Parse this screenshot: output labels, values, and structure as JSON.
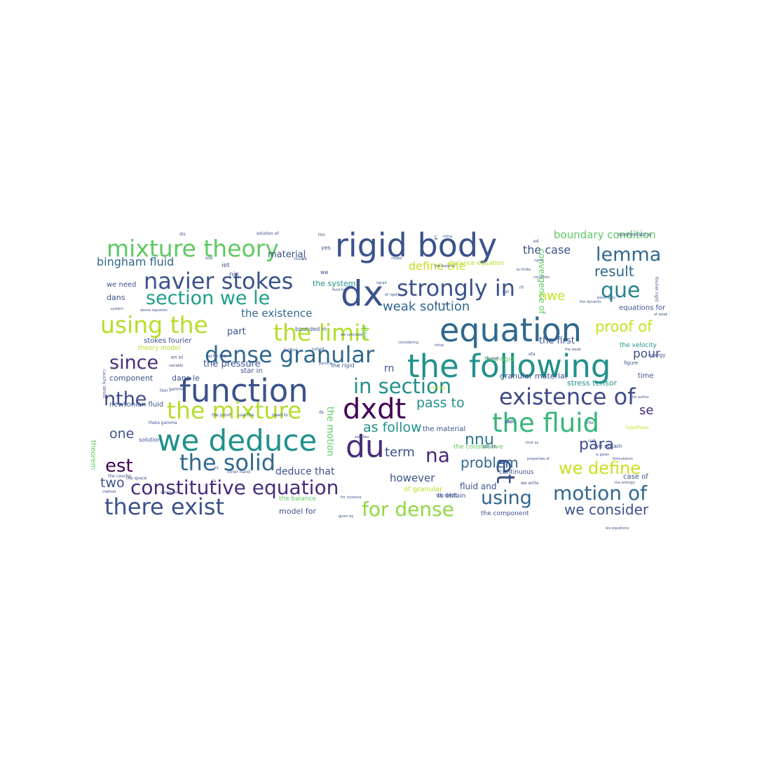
{
  "words": [
    {
      "text": "rigid body",
      "color": "#3b528b"
    },
    {
      "text": "dx",
      "color": "#3b528b"
    },
    {
      "text": "mixture theory",
      "color": "#5ec962"
    },
    {
      "text": "equation",
      "color": "#31688e"
    },
    {
      "text": "the following",
      "color": "#21918c"
    },
    {
      "text": "function",
      "color": "#3b528b"
    },
    {
      "text": "we deduce",
      "color": "#21918c"
    },
    {
      "text": "dense granular",
      "color": "#31688e"
    },
    {
      "text": "strongly in",
      "color": "#3b528b"
    },
    {
      "text": "navier stokes",
      "color": "#3b528b"
    },
    {
      "text": "the limit",
      "color": "#b5de2b"
    },
    {
      "text": "using the",
      "color": "#b5de2b"
    },
    {
      "text": "in section",
      "color": "#21918c"
    },
    {
      "text": "dxdt",
      "color": "#440154"
    },
    {
      "text": "existence of",
      "color": "#3e4989"
    },
    {
      "text": "du",
      "color": "#472d7b"
    },
    {
      "text": "the fluid",
      "color": "#35b779"
    },
    {
      "text": "the mixture",
      "color": "#b5de2b"
    },
    {
      "text": "the solid",
      "color": "#31688e"
    },
    {
      "text": "constitutive equation",
      "color": "#472d7b"
    },
    {
      "text": "there exist",
      "color": "#3b528b"
    },
    {
      "text": "for dense",
      "color": "#90d743"
    },
    {
      "text": "motion of",
      "color": "#31688e"
    },
    {
      "text": "using",
      "color": "#31688e"
    },
    {
      "text": "et",
      "color": "#3b528b"
    },
    {
      "text": "section we le",
      "color": "#1f9e89"
    },
    {
      "text": "lemma",
      "color": "#31688e"
    },
    {
      "text": "que",
      "color": "#26828e"
    },
    {
      "text": "since",
      "color": "#472d7b"
    },
    {
      "text": "nthe",
      "color": "#3e4989"
    },
    {
      "text": "est",
      "color": "#440154"
    },
    {
      "text": "na",
      "color": "#482878"
    },
    {
      "text": "we define",
      "color": "#c8e020"
    },
    {
      "text": "para",
      "color": "#3b528b"
    },
    {
      "text": "proof of",
      "color": "#c8e020"
    },
    {
      "text": "result",
      "color": "#31688e"
    },
    {
      "text": "weak solution",
      "color": "#31688e"
    },
    {
      "text": "pass to",
      "color": "#21918c"
    },
    {
      "text": "as follow",
      "color": "#21918c"
    },
    {
      "text": "nnu",
      "color": "#2c728e"
    },
    {
      "text": "problem",
      "color": "#31688e"
    },
    {
      "text": "we consider",
      "color": "#3b528b"
    },
    {
      "text": "boundary condition",
      "color": "#5ec962"
    },
    {
      "text": "bingham fluid",
      "color": "#31688e"
    },
    {
      "text": "the case",
      "color": "#3b528b"
    },
    {
      "text": "define the",
      "color": "#c8e020"
    },
    {
      "text": "nwe",
      "color": "#c8e020"
    },
    {
      "text": "the existence",
      "color": "#31688e"
    },
    {
      "text": "one",
      "color": "#3b528b"
    },
    {
      "text": "two",
      "color": "#3b528b"
    },
    {
      "text": "term",
      "color": "#3b528b"
    },
    {
      "text": "se",
      "color": "#472d7b"
    },
    {
      "text": "pour",
      "color": "#3b528b"
    },
    {
      "text": "however",
      "color": "#3b528b"
    },
    {
      "text": "deduce that",
      "color": "#3b528b"
    },
    {
      "text": "the pressure",
      "color": "#3b528b"
    },
    {
      "text": "component",
      "color": "#3b528b"
    },
    {
      "text": "material",
      "color": "#3b528b"
    },
    {
      "text": "the system",
      "color": "#21918c"
    },
    {
      "text": "dans",
      "color": "#3b528b"
    },
    {
      "text": "we need",
      "color": "#3b528b"
    },
    {
      "text": "part",
      "color": "#3b528b"
    },
    {
      "text": "dans le",
      "color": "#3b528b"
    },
    {
      "text": "model for",
      "color": "#3b528b"
    },
    {
      "text": "fluid and",
      "color": "#3b528b"
    },
    {
      "text": "the first",
      "color": "#3b528b"
    },
    {
      "text": "granular material",
      "color": "#3b528b"
    },
    {
      "text": "stress tensor",
      "color": "#21918c"
    },
    {
      "text": "the velocity",
      "color": "#21918c"
    },
    {
      "text": "stokes fourier",
      "color": "#3b528b"
    },
    {
      "text": "newtonian fluid",
      "color": "#3b528b"
    },
    {
      "text": "the motion",
      "color": "#5ec962"
    },
    {
      "text": "convergence of",
      "color": "#5ec962"
    },
    {
      "text": "equations for",
      "color": "#3b528b"
    },
    {
      "text": "the constitutive",
      "color": "#5ec962"
    },
    {
      "text": "the component",
      "color": "#3b528b"
    },
    {
      "text": "to obtain",
      "color": "#3b528b"
    },
    {
      "text": "continuous",
      "color": "#3b528b"
    },
    {
      "text": "the balance",
      "color": "#5ec962"
    },
    {
      "text": "case of",
      "color": "#3b528b"
    },
    {
      "text": "rn",
      "color": "#3b528b"
    },
    {
      "text": "theory model",
      "color": "#b5de2b"
    },
    {
      "text": "balance equation",
      "color": "#b5de2b"
    },
    {
      "text": "fluid rigid",
      "color": "#5ec962"
    },
    {
      "text": "solution",
      "color": "#3b528b"
    },
    {
      "text": "uk dxdt",
      "color": "#3b528b"
    },
    {
      "text": "the material",
      "color": "#3b528b"
    },
    {
      "text": "we obtain",
      "color": "#3b528b"
    },
    {
      "text": "solution of",
      "color": "#3b528b"
    },
    {
      "text": "mathematical",
      "color": "#3b528b"
    },
    {
      "text": "star in",
      "color": "#3b528b"
    },
    {
      "text": "of granular",
      "color": "#b5de2b"
    },
    {
      "text": "iet",
      "color": "#3b528b"
    },
    {
      "text": "nin",
      "color": "#3b528b"
    },
    {
      "text": "theorem",
      "color": "#5ec962"
    },
    {
      "text": "energy",
      "color": "#3b528b"
    },
    {
      "text": "time",
      "color": "#3b528b"
    },
    {
      "text": "figure",
      "color": "#3b528b"
    },
    {
      "text": "la limite",
      "color": "#3b528b"
    },
    {
      "text": "fourier rigid",
      "color": "#3b528b"
    },
    {
      "text": "we conclude",
      "color": "#3b528b"
    },
    {
      "text": "bounded in",
      "color": "#3b528b"
    },
    {
      "text": "the rigid",
      "color": "#3b528b"
    },
    {
      "text": "the proof",
      "color": "#3b528b"
    },
    {
      "text": "use the",
      "color": "#3b528b"
    },
    {
      "text": "need to",
      "color": "#3b528b"
    },
    {
      "text": "model",
      "color": "#3b528b"
    },
    {
      "text": "particle",
      "color": "#3b528b"
    },
    {
      "text": "write the",
      "color": "#3b528b"
    },
    {
      "text": "above equation",
      "color": "#3b528b"
    },
    {
      "text": "variable",
      "color": "#3b528b"
    },
    {
      "text": "system",
      "color": "#3b528b"
    },
    {
      "text": "the space",
      "color": "#3b528b"
    },
    {
      "text": "the cauchy",
      "color": "#3b528b"
    },
    {
      "text": "method",
      "color": "#3b528b"
    },
    {
      "text": "obtain the",
      "color": "#3b528b"
    },
    {
      "text": "given by",
      "color": "#3b528b"
    },
    {
      "text": "for instance",
      "color": "#3b528b"
    },
    {
      "text": "properties of",
      "color": "#3b528b"
    },
    {
      "text": "is given",
      "color": "#3b528b"
    },
    {
      "text": "formulation",
      "color": "#3b528b"
    },
    {
      "text": "the entropy",
      "color": "#3b528b"
    },
    {
      "text": "les equations",
      "color": "#3b528b"
    },
    {
      "text": "the author",
      "color": "#3b528b"
    },
    {
      "text": "hypothesis",
      "color": "#c8e020"
    },
    {
      "text": "theta gamma",
      "color": "#3b528b"
    },
    {
      "text": "considering",
      "color": "#3b528b"
    },
    {
      "text": "satisfies",
      "color": "#3b528b"
    },
    {
      "text": "we write",
      "color": "#3b528b"
    },
    {
      "text": "other hand",
      "color": "#3b528b"
    },
    {
      "text": "cauchy stress",
      "color": "#3b528b"
    },
    {
      "text": "also",
      "color": "#5ec962"
    },
    {
      "text": "the dynamic",
      "color": "#3b528b"
    },
    {
      "text": "passing to",
      "color": "#3b528b"
    },
    {
      "text": "fluid in",
      "color": "#3b528b"
    },
    {
      "text": "the weak",
      "color": "#3b528b"
    },
    {
      "text": "en ei",
      "color": "#3b528b"
    },
    {
      "text": "limit as",
      "color": "#3b528b"
    },
    {
      "text": "of weak",
      "color": "#3b528b"
    },
    {
      "text": "condition",
      "color": "#3b528b"
    },
    {
      "text": "domain",
      "color": "#3b528b"
    },
    {
      "text": "the balance",
      "color": "#3b528b"
    },
    {
      "text": "of rigid",
      "color": "#3b528b"
    },
    {
      "text": "the sup",
      "color": "#3b528b"
    },
    {
      "text": "ngrad",
      "color": "#3b528b"
    },
    {
      "text": "nand",
      "color": "#3b528b"
    },
    {
      "text": "nthat",
      "color": "#3b528b"
    },
    {
      "text": "yes",
      "color": "#3b528b"
    },
    {
      "text": "we",
      "color": "#3b528b"
    },
    {
      "text": "tim",
      "color": "#3b528b"
    },
    {
      "text": "ok",
      "color": "#3b528b"
    },
    {
      "text": "dis",
      "color": "#3b528b"
    },
    {
      "text": "del",
      "color": "#3b528b"
    },
    {
      "text": "rh",
      "color": "#3b528b"
    },
    {
      "text": "ed",
      "color": "#3b528b"
    },
    {
      "text": "tion",
      "color": "#3b528b"
    },
    {
      "text": "nous",
      "color": "#3b528b"
    },
    {
      "text": "noted",
      "color": "#3b528b"
    },
    {
      "text": "motion",
      "color": "#3b528b"
    },
    {
      "text": "moving",
      "color": "#c8e020"
    },
    {
      "text": "uk",
      "color": "#3b528b"
    },
    {
      "text": "sob",
      "color": "#3b528b"
    },
    {
      "text": "nmu",
      "color": "#3b528b"
    },
    {
      "text": "bs",
      "color": "#3b528b"
    },
    {
      "text": "xs",
      "color": "#3b528b"
    },
    {
      "text": "la",
      "color": "#3b528b"
    },
    {
      "text": "ds",
      "color": "#3b528b"
    },
    {
      "text": "gamma",
      "color": "#3b528b"
    },
    {
      "text": "such",
      "color": "#3b528b"
    },
    {
      "text": "nab",
      "color": "#3b528b"
    },
    {
      "text": "qsh uk",
      "color": "#3b528b"
    },
    {
      "text": "the",
      "color": "#3b528b"
    },
    {
      "text": "eta",
      "color": "#3b528b"
    }
  ]
}
